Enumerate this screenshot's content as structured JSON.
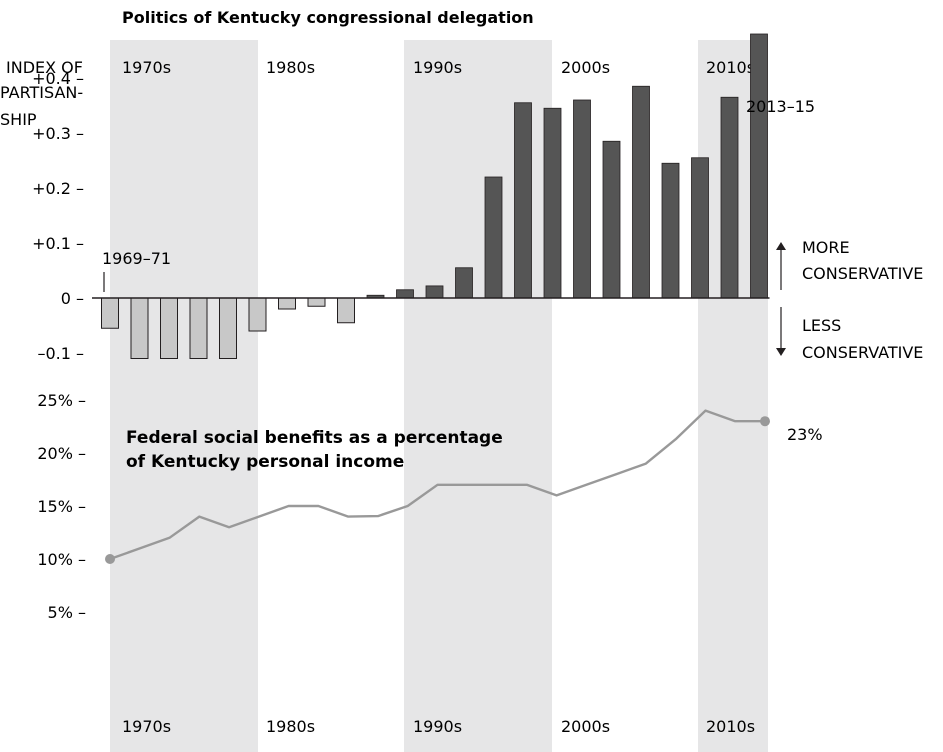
{
  "chart_data": [
    {
      "type": "bar",
      "title": "Politics of Kentucky congressional delegation",
      "ylabel": [
        "INDEX OF",
        "PARTISAN-",
        "SHIP"
      ],
      "ylim": [
        -0.15,
        0.5
      ],
      "yticks": [
        {
          "value": 0.4,
          "label": "+0.4 –"
        },
        {
          "value": 0.3,
          "label": "+0.3 –"
        },
        {
          "value": 0.2,
          "label": "+0.2 –"
        },
        {
          "value": 0.1,
          "label": "+0.1 –"
        },
        {
          "value": 0,
          "label": "0 –"
        },
        {
          "value": -0.1,
          "label": "–0.1 –"
        }
      ],
      "decades": [
        "1970s",
        "1980s",
        "1990s",
        "2000s",
        "2010s"
      ],
      "x_start": 1969,
      "x_step": 2,
      "values": [
        -0.055,
        -0.11,
        -0.11,
        -0.11,
        -0.11,
        -0.06,
        -0.02,
        -0.015,
        -0.045,
        0.005,
        0.015,
        0.022,
        0.055,
        0.22,
        0.355,
        0.345,
        0.36,
        0.285,
        0.385,
        0.245,
        0.255,
        0.365,
        0.48
      ],
      "negative_color": "#c8c8c8",
      "positive_color": "#555555",
      "band_color": "#e6e6e7",
      "annotations": {
        "first": "1969–71",
        "last": "2013–15"
      },
      "more_label": [
        "MORE",
        "CONSERVATIVE"
      ],
      "less_label": [
        "LESS",
        "CONSERVATIVE"
      ]
    },
    {
      "type": "line",
      "title": [
        "Federal social benefits as a percentage",
        "of Kentucky personal income"
      ],
      "ylim": [
        5,
        25
      ],
      "yticks": [
        {
          "value": 25,
          "label": "25% –"
        },
        {
          "value": 20,
          "label": "20% –"
        },
        {
          "value": 15,
          "label": "15% –"
        },
        {
          "value": 10,
          "label": "10% –"
        },
        {
          "value": 5,
          "label": "5% –"
        }
      ],
      "decades": [
        "1970s",
        "1980s",
        "1990s",
        "2000s",
        "2010s"
      ],
      "x": [
        1970,
        1972,
        1974,
        1976,
        1978,
        1980,
        1982,
        1984,
        1986,
        1988,
        1990,
        1992,
        1994,
        1996,
        1998,
        2000,
        2002,
        2004,
        2006,
        2008,
        2010,
        2012
      ],
      "values": [
        10,
        11,
        12,
        14,
        13,
        14,
        15,
        15,
        14,
        14.05,
        15,
        17,
        17,
        17,
        17,
        16,
        17,
        18,
        19,
        21.3,
        24,
        23
      ],
      "extra_point": {
        "x": 2014,
        "value": 23
      },
      "end_label": "23%",
      "line_color": "#999999"
    }
  ]
}
